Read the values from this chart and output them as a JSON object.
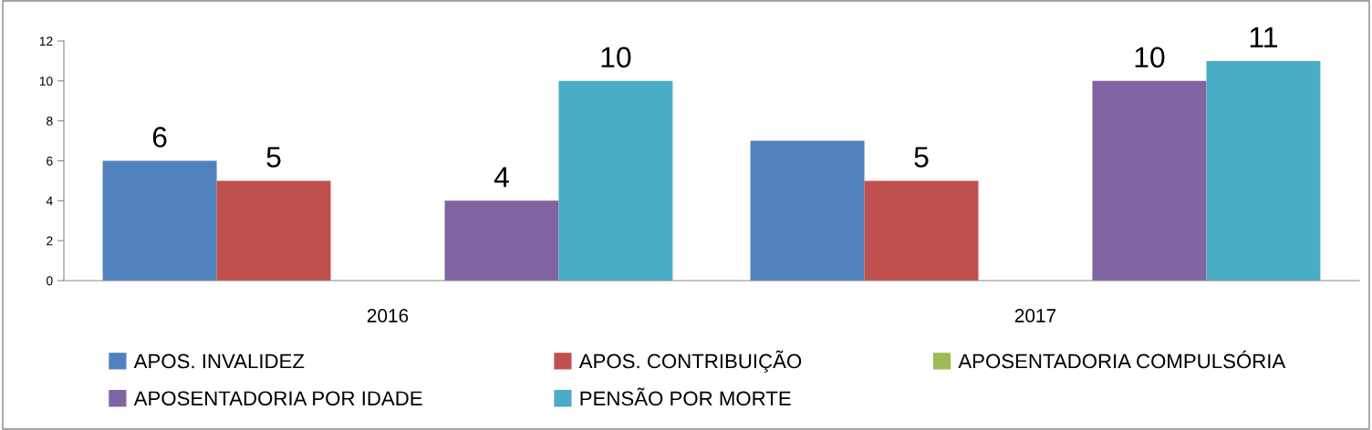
{
  "chart_data": {
    "type": "bar",
    "categories": [
      "2016",
      "2017"
    ],
    "series": [
      {
        "name": "APOS. INVALIDEZ",
        "color": "#4f81bd",
        "values": [
          6,
          7
        ],
        "value_labels": [
          "6",
          null
        ]
      },
      {
        "name": "APOS. CONTRIBUIÇÃO",
        "color": "#c0504d",
        "values": [
          5,
          5
        ],
        "value_labels": [
          "5",
          "5"
        ]
      },
      {
        "name": "APOSENTADORIA COMPULSÓRIA",
        "color": "#9bbb59",
        "values": [
          null,
          null
        ],
        "value_labels": [
          null,
          null
        ]
      },
      {
        "name": "APOSENTADORIA POR IDADE",
        "color": "#8064a2",
        "values": [
          4,
          10
        ],
        "value_labels": [
          "4",
          "10"
        ]
      },
      {
        "name": "PENSÃO POR MORTE",
        "color": "#4bacc6",
        "values": [
          10,
          11
        ],
        "value_labels": [
          "10",
          "11"
        ]
      }
    ],
    "ylim": [
      0,
      12
    ],
    "yticks": [
      0,
      2,
      4,
      6,
      8,
      10,
      12
    ],
    "grid": false,
    "legend": "bottom"
  }
}
